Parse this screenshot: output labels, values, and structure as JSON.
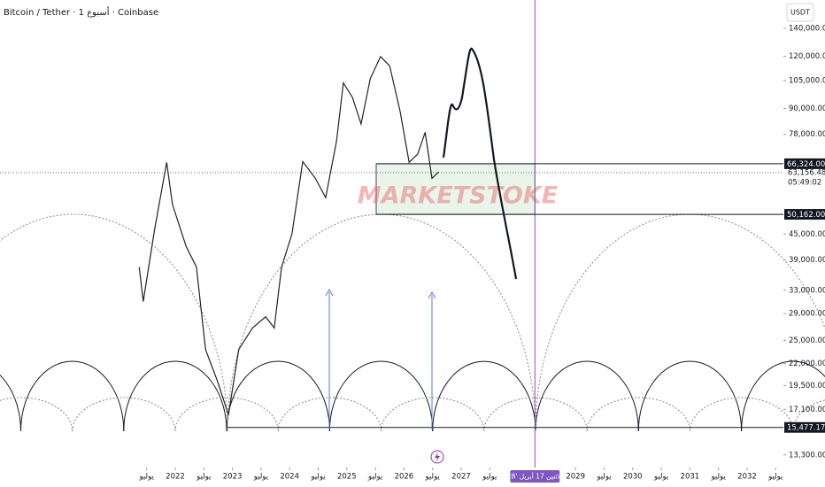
{
  "chart_data": {
    "type": "line",
    "title": "Bitcoin / Tether · 1 أسبوع · Coinbase",
    "currency": "USDT",
    "watermark": "MARKETSTOKE",
    "log_scale": true,
    "color": "#222222",
    "x": [
      2021.37,
      2021.44,
      2021.64,
      2021.85,
      2021.95,
      2022.19,
      2022.37,
      2022.53,
      2022.73,
      2022.93,
      2023.11,
      2023.35,
      2023.58,
      2023.73,
      2023.86,
      2024.04,
      2024.23,
      2024.45,
      2024.63,
      2024.82,
      2024.94,
      2025.1,
      2025.25,
      2025.41,
      2025.59,
      2025.75,
      2025.93,
      2026.09,
      2026.24,
      2026.37,
      2026.49,
      2026.61
    ],
    "values": [
      37500,
      31000,
      46200,
      66800,
      53000,
      42000,
      37500,
      23800,
      20100,
      16600,
      23800,
      26800,
      28500,
      26800,
      37500,
      45000,
      67100,
      61200,
      55000,
      75200,
      103600,
      95600,
      82600,
      106100,
      119800,
      113800,
      88800,
      66800,
      70000,
      78900,
      61200,
      63400
    ],
    "xlim": [
      2018.935,
      2032.635
    ],
    "ylim": [
      12900,
      163700
    ],
    "xticks": [
      {
        "value": 2021.5,
        "label": "يوليو"
      },
      2022,
      {
        "value": 2022.5,
        "label": "يوليو"
      },
      2023,
      {
        "value": 2023.5,
        "label": "يوليو"
      },
      2024,
      {
        "value": 2024.5,
        "label": "يوليو"
      },
      2025,
      {
        "value": 2025.5,
        "label": "يوليو"
      },
      2026,
      {
        "value": 2026.5,
        "label": "يوليو"
      },
      2027,
      {
        "value": 2027.5,
        "label": "يوليو"
      },
      2029,
      {
        "value": 2029.5,
        "label": "يوليو"
      },
      2030,
      {
        "value": 2030.5,
        "label": "يوليو"
      },
      2031,
      {
        "value": 2031.5,
        "label": "يوليو"
      },
      2032,
      {
        "value": 2032.5,
        "label": "يوليو"
      }
    ],
    "yticks": [
      {
        "value": 140000,
        "label": "140,000.00"
      },
      {
        "value": 120000,
        "label": "120,000.00"
      },
      {
        "value": 105000,
        "label": "105,000.00"
      },
      {
        "value": 90000,
        "label": "90,000.00"
      },
      {
        "value": 78000,
        "label": "78,000.00"
      },
      {
        "value": 45000,
        "label": "45,000.00"
      },
      {
        "value": 39000,
        "label": "39,000.00"
      },
      {
        "value": 33000,
        "label": "33,000.00"
      },
      {
        "value": 29000,
        "label": "29,000.00"
      },
      {
        "value": 25000,
        "label": "25,000.00"
      },
      {
        "value": 22000,
        "label": "22,000.00"
      },
      {
        "value": 19500,
        "label": "19,500.00"
      },
      {
        "value": 17100,
        "label": "17,100.00"
      },
      {
        "value": 13300,
        "label": "13,300.00"
      }
    ],
    "levels": [
      {
        "value": 66324,
        "label": "66,324.00"
      },
      {
        "value": 50162,
        "label": "50,162.00"
      },
      {
        "value": 15477.17,
        "label": "15,477.17"
      }
    ],
    "last_price": {
      "value": 63156.48,
      "label": "63,156.48"
    },
    "countdown": "05:49:02",
    "cursor_date": {
      "value": 2028.29,
      "label": "الاثنين 17 أبريل '28"
    }
  }
}
